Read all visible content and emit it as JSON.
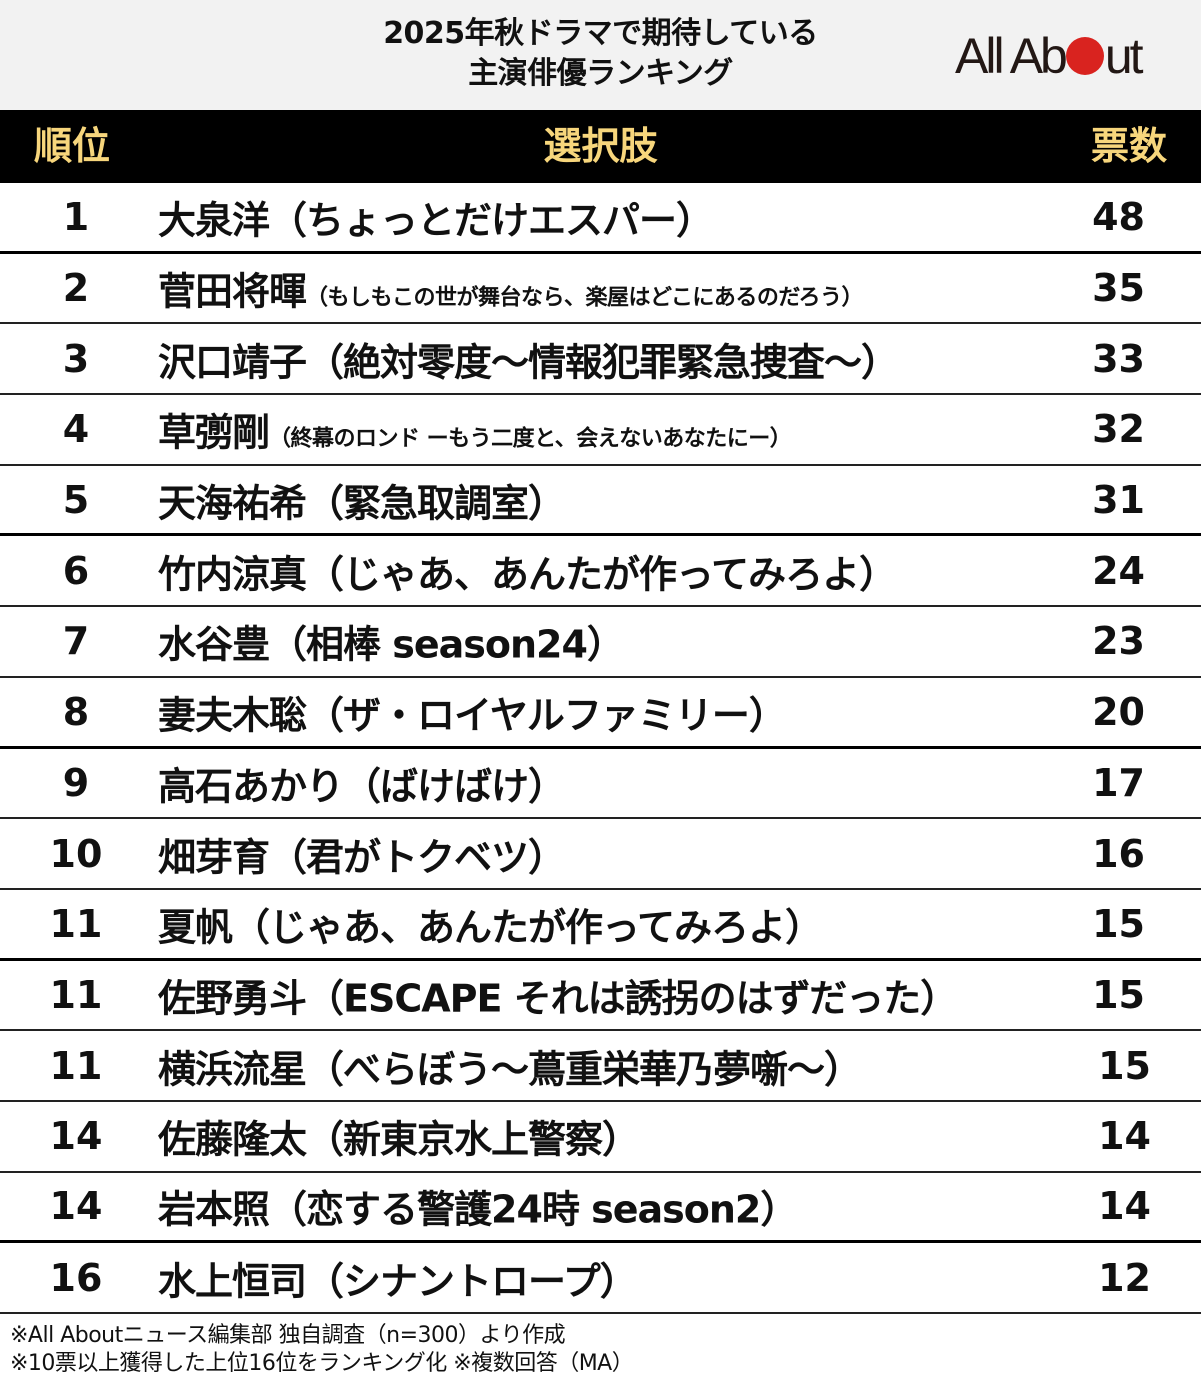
{
  "header": {
    "title_line1": "2025年秋ドラマで期待している",
    "title_line2": "主演俳優ランキング",
    "logo": {
      "prefix": "All Ab",
      "suffix": "ut",
      "dot_color": "#d9231f"
    }
  },
  "table": {
    "columns": {
      "rank": "順位",
      "choice": "選択肢",
      "votes": "票数"
    },
    "header_bg": "#000000",
    "header_text_color": "#f7d67c",
    "rows": [
      {
        "rank": "1",
        "name": "大泉洋",
        "drama": "（ちょっとだけエスパー）",
        "votes": "48",
        "small": false
      },
      {
        "rank": "2",
        "name": "菅田将暉",
        "drama": "（もしもこの世が舞台なら、楽屋はどこにあるのだろう）",
        "votes": "35",
        "small": true
      },
      {
        "rank": "3",
        "name": "沢口靖子",
        "drama": "（絶対零度～情報犯罪緊急捜査～）",
        "votes": "33",
        "small": false
      },
      {
        "rank": "4",
        "name": "草彅剛",
        "drama": "（終幕のロンド ーもう二度と、会えないあなたにー）",
        "votes": "32",
        "small": true
      },
      {
        "rank": "5",
        "name": "天海祐希",
        "drama": "（緊急取調室）",
        "votes": "31",
        "small": false
      },
      {
        "rank": "6",
        "name": "竹内涼真",
        "drama": "（じゃあ、あんたが作ってみろよ）",
        "votes": "24",
        "small": false
      },
      {
        "rank": "7",
        "name": "水谷豊",
        "drama": "（相棒 season24）",
        "votes": "23",
        "small": false
      },
      {
        "rank": "8",
        "name": "妻夫木聡",
        "drama": "（ザ・ロイヤルファミリー）",
        "votes": "20",
        "small": false
      },
      {
        "rank": "9",
        "name": "高石あかり",
        "drama": "（ばけばけ）",
        "votes": "17",
        "small": false
      },
      {
        "rank": "10",
        "name": "畑芽育",
        "drama": "（君がトクベツ）",
        "votes": "16",
        "small": false
      },
      {
        "rank": "11",
        "name": "夏帆",
        "drama": "（じゃあ、あんたが作ってみろよ）",
        "votes": "15",
        "small": false
      },
      {
        "rank": "11",
        "name": "佐野勇斗",
        "drama": "（ESCAPE それは誘拐のはずだった）",
        "votes": "15",
        "small": false
      },
      {
        "rank": "11",
        "name": "横浜流星",
        "drama": "（べらぼう～蔦重栄華乃夢噺～）",
        "votes": "15",
        "small": false
      },
      {
        "rank": "14",
        "name": "佐藤隆太",
        "drama": "（新東京水上警察）",
        "votes": "14",
        "small": false
      },
      {
        "rank": "14",
        "name": "岩本照",
        "drama": "（恋する警護24時 season2）",
        "votes": "14",
        "small": false
      },
      {
        "rank": "16",
        "name": "水上恒司",
        "drama": "（シナントロープ）",
        "votes": "12",
        "small": false
      }
    ]
  },
  "notes": {
    "line1": "※All Aboutニュース編集部 独自調査（n=300）より作成",
    "line2": "※10票以上獲得した上位16位をランキング化 ※複数回答（MA）"
  },
  "chart_data": {
    "type": "table",
    "title": "2025年秋ドラマで期待している主演俳優ランキング",
    "columns": [
      "順位",
      "選択肢",
      "票数"
    ],
    "categories": [
      "大泉洋（ちょっとだけエスパー）",
      "菅田将暉（もしもこの世が舞台なら、楽屋はどこにあるのだろう）",
      "沢口靖子（絶対零度～情報犯罪緊急捜査～）",
      "草彅剛（終幕のロンド ーもう二度と、会えないあなたにー）",
      "天海祐希（緊急取調室）",
      "竹内涼真（じゃあ、あんたが作ってみろよ）",
      "水谷豊（相棒 season24）",
      "妻夫木聡（ザ・ロイヤルファミリー）",
      "高石あかり（ばけばけ）",
      "畑芽育（君がトクベツ）",
      "夏帆（じゃあ、あんたが作ってみろよ）",
      "佐野勇斗（ESCAPE それは誘拐のはずだった）",
      "横浜流星（べらぼう～蔦重栄華乃夢噺～）",
      "佐藤隆太（新東京水上警察）",
      "岩本照（恋する警護24時 season2）",
      "水上恒司（シナントロープ）"
    ],
    "ranks": [
      1,
      2,
      3,
      4,
      5,
      6,
      7,
      8,
      9,
      10,
      11,
      11,
      11,
      14,
      14,
      16
    ],
    "values": [
      48,
      35,
      33,
      32,
      31,
      24,
      23,
      20,
      17,
      16,
      15,
      15,
      15,
      14,
      14,
      12
    ],
    "notes": [
      "※All Aboutニュース編集部 独自調査（n=300）より作成",
      "※10票以上獲得した上位16位をランキング化 ※複数回答（MA）"
    ]
  }
}
